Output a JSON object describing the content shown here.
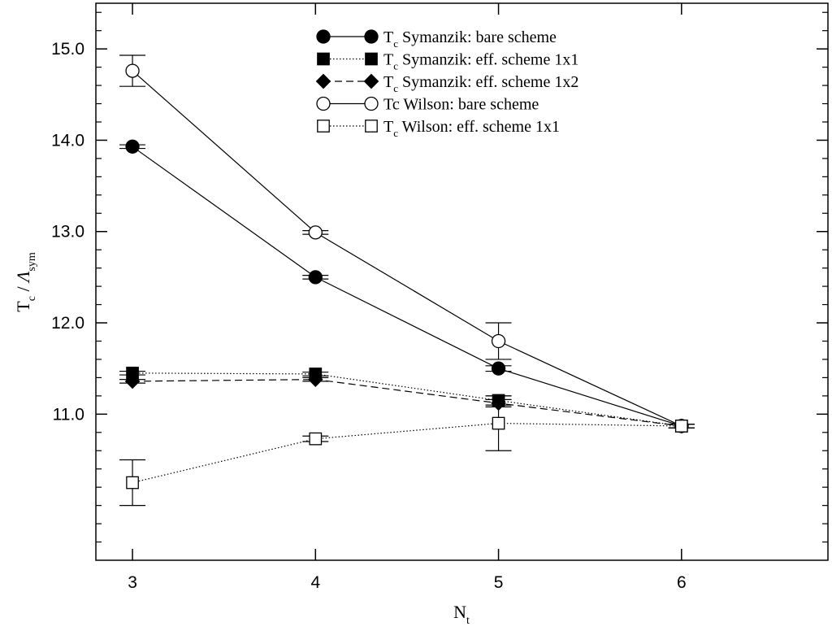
{
  "chart_data": {
    "type": "line",
    "xlabel": {
      "main": "N",
      "sub": "t"
    },
    "ylabel": {
      "main": "T",
      "sub": "c",
      "sep": " / ",
      "main2": "Λ",
      "sub2": "sym"
    },
    "xlim": [
      2.8,
      6.8
    ],
    "ylim": [
      9.4,
      15.5
    ],
    "xticks": [
      3,
      4,
      5,
      6
    ],
    "yticks": [
      11.0,
      12.0,
      13.0,
      14.0,
      15.0
    ],
    "ytick_labels": [
      "11.0",
      "12.0",
      "13.0",
      "14.0",
      "15.0"
    ],
    "yminor": [
      9.6,
      9.8,
      10.0,
      10.2,
      10.4,
      10.6,
      10.8,
      11.2,
      11.4,
      11.6,
      11.8,
      12.2,
      12.4,
      12.6,
      12.8,
      13.2,
      13.4,
      13.6,
      13.8,
      14.2,
      14.4,
      14.6,
      14.8,
      15.2,
      15.4
    ],
    "grid": false,
    "legend_position": "top-center",
    "series": [
      {
        "name_main": "T",
        "name_sub": "c",
        "name_rest": " Symanzik: bare scheme",
        "marker": "circle",
        "filled": true,
        "line": "solid",
        "x": [
          3,
          4,
          5,
          6
        ],
        "y": [
          13.93,
          12.5,
          11.5,
          10.87
        ],
        "yerr": [
          0.02,
          0.02,
          0.03,
          0.02
        ]
      },
      {
        "name_main": "T",
        "name_sub": "c",
        "name_rest": " Symanzik: eff. scheme 1x1",
        "marker": "square",
        "filled": true,
        "line": "dotted",
        "x": [
          3,
          4,
          5,
          6
        ],
        "y": [
          11.45,
          11.44,
          11.15,
          10.87
        ],
        "yerr": [
          0.02,
          0.02,
          0.05,
          0.02
        ]
      },
      {
        "name_main": "T",
        "name_sub": "c",
        "name_rest": " Symanzik: eff. scheme 1x2",
        "marker": "diamond",
        "filled": true,
        "line": "dashed",
        "x": [
          3,
          4,
          5,
          6
        ],
        "y": [
          11.36,
          11.38,
          11.12,
          10.87
        ],
        "yerr": [
          0.02,
          0.02,
          0.04,
          0.02
        ]
      },
      {
        "name_main": "Tc Wilson: bare scheme",
        "name_sub": "",
        "name_rest": "",
        "marker": "circle",
        "filled": false,
        "line": "solid",
        "x": [
          3,
          4,
          5,
          6
        ],
        "y": [
          14.76,
          12.99,
          11.8,
          10.87
        ],
        "yerr": [
          0.17,
          0.02,
          0.2,
          0.02
        ]
      },
      {
        "name_main": "T",
        "name_sub": "c",
        "name_rest": " Wilson: eff. scheme 1x1",
        "marker": "square",
        "filled": false,
        "line": "dotted",
        "x": [
          3,
          4,
          5,
          6
        ],
        "y": [
          10.25,
          10.73,
          10.9,
          10.87
        ],
        "yerr": [
          0.25,
          0.03,
          0.3,
          0.02
        ]
      }
    ]
  }
}
